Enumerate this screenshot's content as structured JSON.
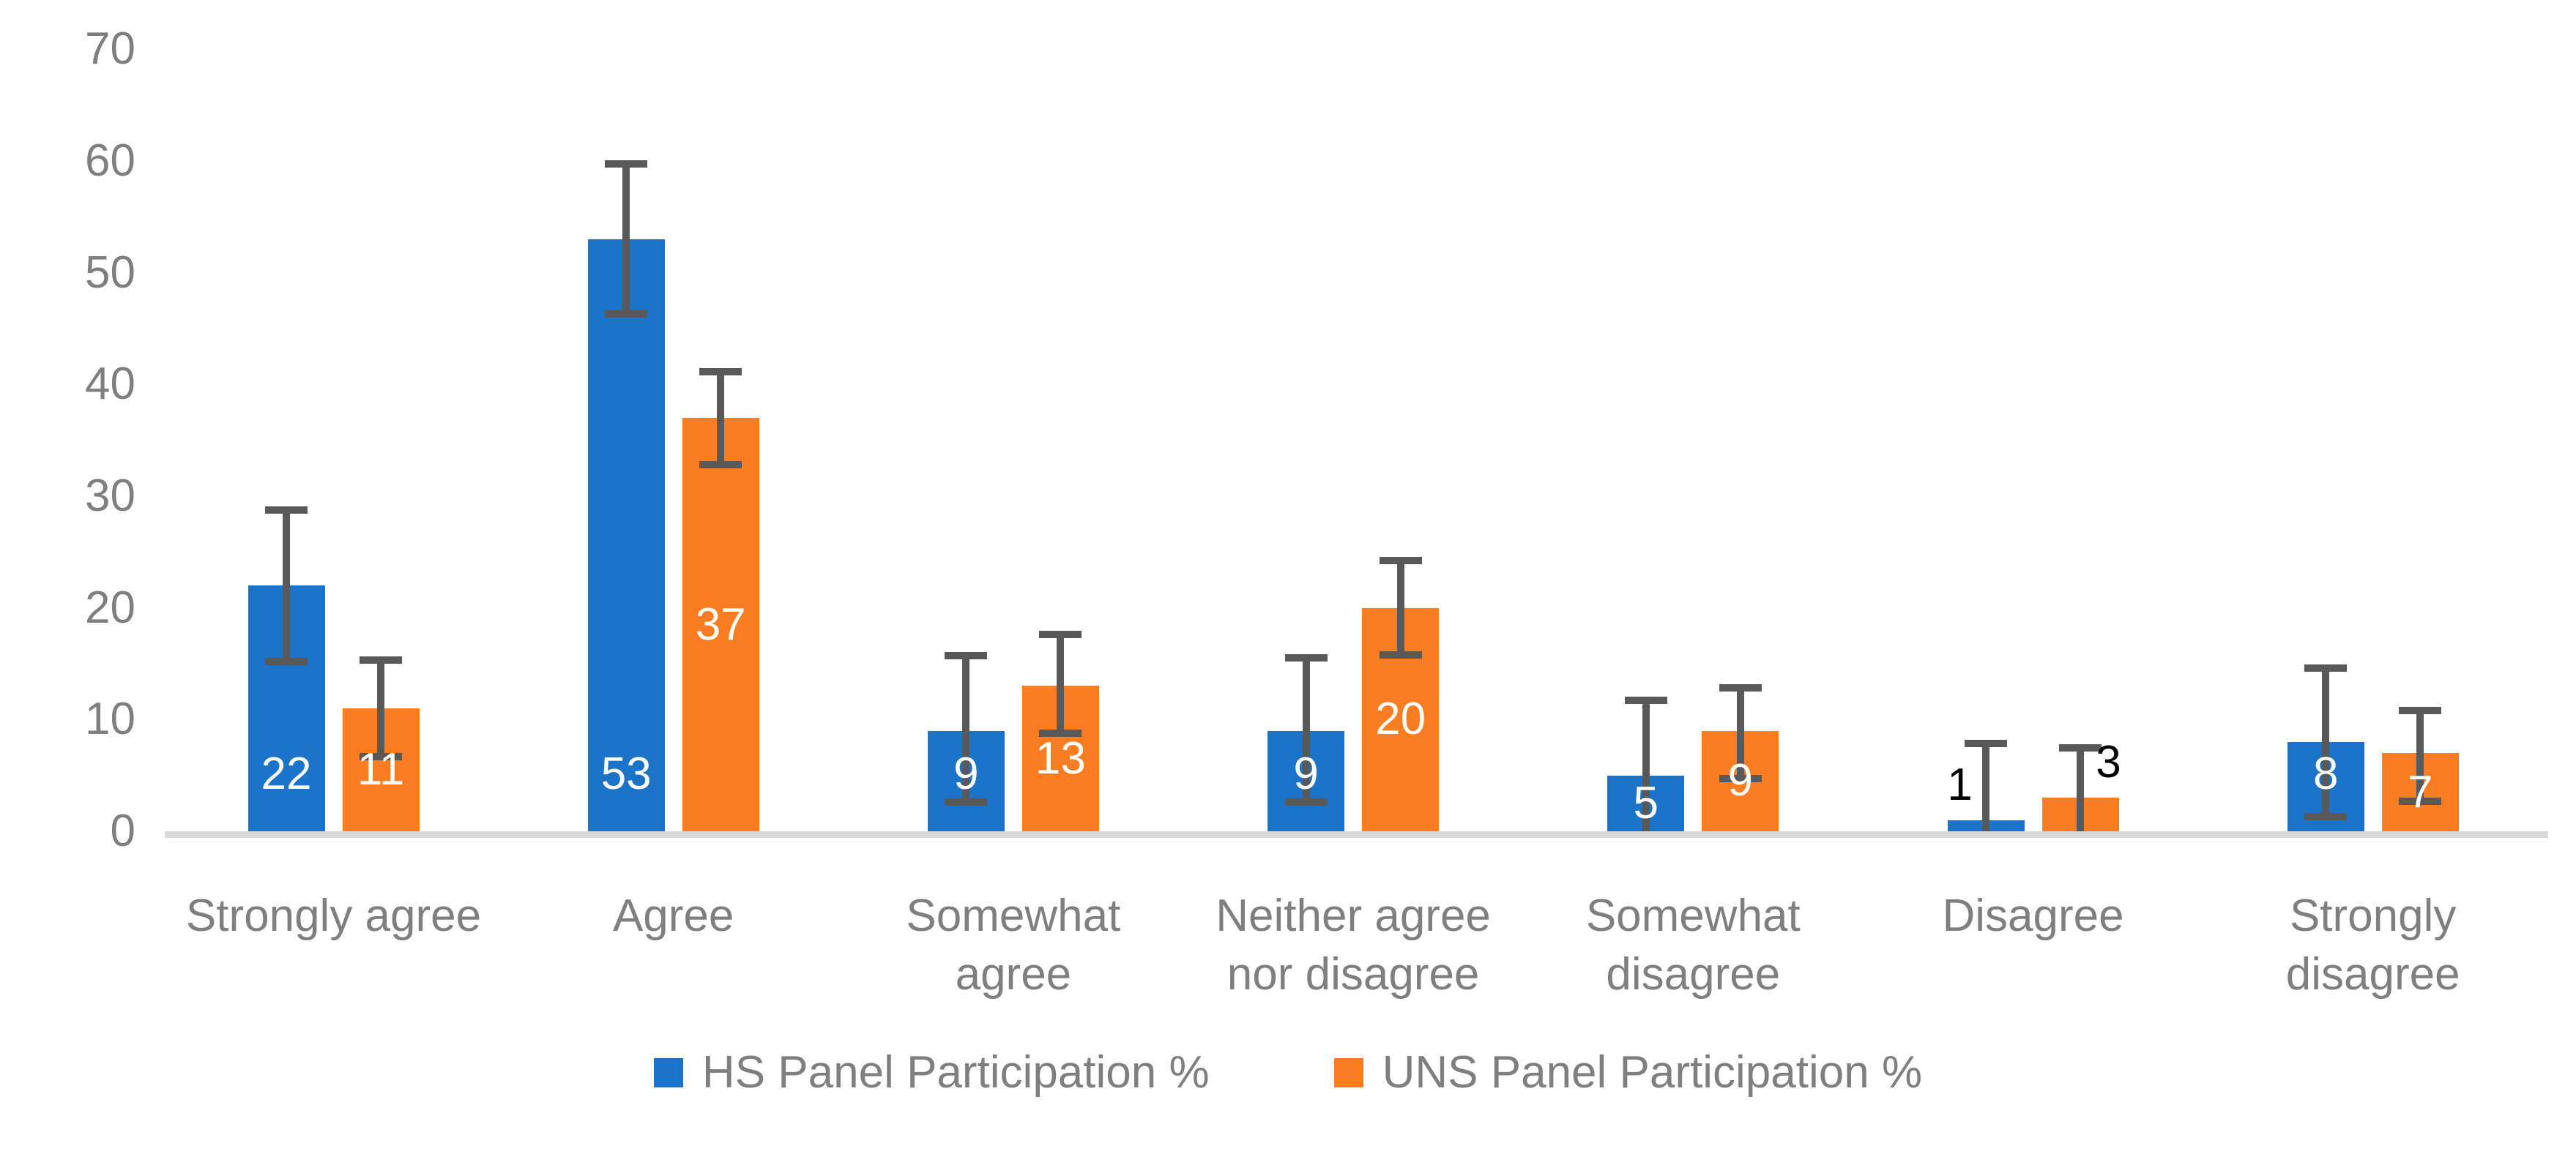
{
  "chart_data": {
    "type": "bar",
    "title": "",
    "xlabel": "",
    "ylabel": "",
    "ylim": [
      0,
      70
    ],
    "y_ticks": [
      0,
      10,
      20,
      30,
      40,
      50,
      60,
      70
    ],
    "grid": false,
    "legend_position": "bottom",
    "background_color": "#FFFFFF",
    "axis_text_color": "#7F7F7F",
    "baseline_color": "#D9D9D9",
    "error_bar_color": "#595959",
    "inside_label_color": "#FFFFFF",
    "outside_label_color": "#000000",
    "categories": [
      {
        "label": "Strongly agree",
        "lines": [
          "Strongly agree"
        ]
      },
      {
        "label": "Agree",
        "lines": [
          "Agree"
        ]
      },
      {
        "label": "Somewhat agree",
        "lines": [
          "Somewhat",
          "agree"
        ]
      },
      {
        "label": "Neither agree nor disagree",
        "lines": [
          "Neither agree",
          "nor disagree"
        ]
      },
      {
        "label": "Somewhat disagree",
        "lines": [
          "Somewhat",
          "disagree"
        ]
      },
      {
        "label": "Disagree",
        "lines": [
          "Disagree"
        ]
      },
      {
        "label": "Strongly disagree",
        "lines": [
          "Strongly",
          "disagree"
        ]
      }
    ],
    "series": [
      {
        "name": "HS Panel Participation %",
        "color": "#1C74C9",
        "values": [
          22,
          53,
          9,
          9,
          5,
          1,
          8
        ],
        "error_low": [
          15.2,
          46.3,
          2.6,
          2.6,
          0,
          0,
          1.3
        ],
        "error_high": [
          28.8,
          59.8,
          15.8,
          15.6,
          11.8,
          7.9,
          14.7
        ],
        "label_style": [
          "inside-base",
          "inside-base",
          "inside-base",
          "inside-base",
          "center",
          "outside-left",
          "inside-base"
        ]
      },
      {
        "name": "UNS Panel Participation %",
        "color": "#FB7D22",
        "values": [
          11,
          37,
          13,
          20,
          9,
          3,
          7
        ],
        "error_low": [
          6.7,
          32.8,
          8.8,
          15.8,
          4.7,
          0,
          2.7
        ],
        "error_high": [
          15.4,
          41.2,
          17.7,
          24.3,
          12.9,
          7.5,
          10.9
        ],
        "label_style": [
          "center",
          "center",
          "center",
          "center",
          "center",
          "outside-right",
          "center"
        ]
      }
    ]
  }
}
